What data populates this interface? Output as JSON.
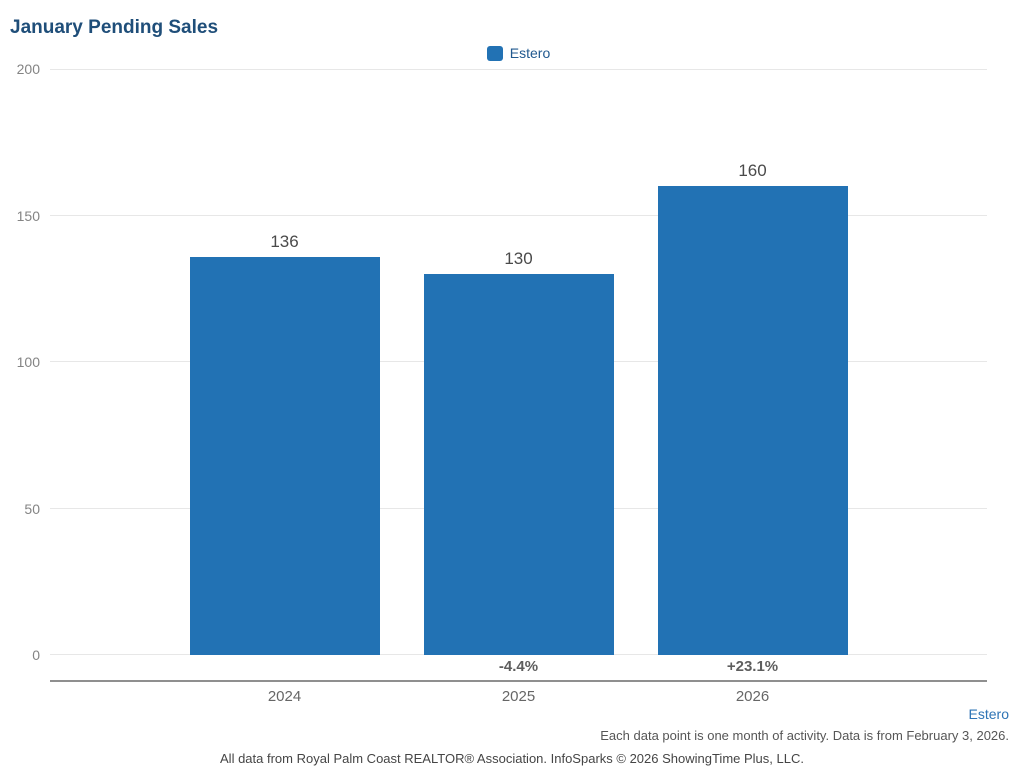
{
  "title": "January Pending Sales",
  "legend": {
    "label": "Estero"
  },
  "footer": {
    "series_label": "Estero",
    "note_right": "Each data point is one month of activity. Data is from February 3, 2026.",
    "note_bottom": "All data from Royal Palm Coast REALTOR® Association. InfoSparks © 2026 ShowingTime Plus, LLC."
  },
  "colors": {
    "bar": "#2272b4",
    "title": "#1f4e79",
    "legend_text": "#21598f",
    "link_blue": "#2e74b5",
    "gridline": "#e7e7e7",
    "axis_line": "#8f8f8f"
  },
  "chart_data": {
    "type": "bar",
    "title": "January Pending Sales",
    "categories": [
      "2024",
      "2025",
      "2026"
    ],
    "series": [
      {
        "name": "Estero",
        "values": [
          136,
          130,
          160
        ]
      }
    ],
    "value_labels": [
      "136",
      "130",
      "160"
    ],
    "pct_change_labels": [
      null,
      "-4.4%",
      "+23.1%"
    ],
    "xlabel": "",
    "ylabel": "",
    "yticks": [
      0,
      50,
      100,
      150,
      200
    ],
    "ylim": [
      0,
      200
    ],
    "grid": true,
    "legend_position": "top-center"
  }
}
